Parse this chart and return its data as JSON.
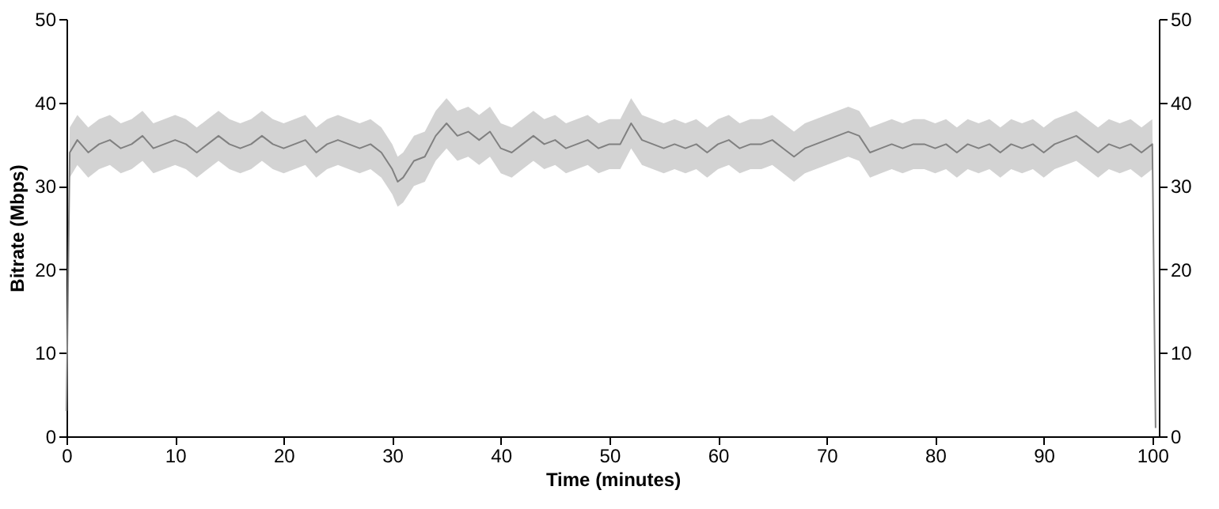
{
  "chart_data": {
    "type": "line",
    "xlabel": "Time (minutes)",
    "ylabel": "Bitrate (Mbps)",
    "xlim": [
      0,
      100.6
    ],
    "xticks": [
      0,
      10,
      20,
      30,
      40,
      50,
      60,
      70,
      80,
      90,
      100
    ],
    "ylim": [
      0,
      50
    ],
    "yticks": [
      0,
      10,
      20,
      30,
      40,
      50
    ],
    "y2lim": [
      0,
      50
    ],
    "y2ticks": [
      0,
      10,
      20,
      30,
      40,
      50
    ],
    "grid": false,
    "marker": "none",
    "line_style": "solid",
    "x": [
      0,
      0.3,
      1,
      2,
      3,
      4,
      5,
      6,
      7,
      8,
      9,
      10,
      11,
      12,
      13,
      14,
      15,
      16,
      17,
      18,
      19,
      20,
      21,
      22,
      23,
      24,
      25,
      26,
      27,
      28,
      29,
      30,
      30.5,
      31,
      32,
      33,
      34,
      35,
      36,
      37,
      38,
      39,
      40,
      41,
      42,
      43,
      44,
      45,
      46,
      47,
      48,
      49,
      50,
      51,
      52,
      53,
      54,
      55,
      56,
      57,
      58,
      59,
      60,
      61,
      62,
      63,
      64,
      65,
      66,
      67,
      68,
      69,
      70,
      71,
      72,
      73,
      74,
      75,
      76,
      77,
      78,
      79,
      80,
      81,
      82,
      83,
      84,
      85,
      86,
      87,
      88,
      89,
      90,
      91,
      92,
      93,
      94,
      95,
      96,
      97,
      98,
      99,
      100,
      100.3
    ],
    "series": [
      {
        "color": "#808080",
        "values": [
          3,
          34,
          35.5,
          34,
          35,
          35.5,
          34.5,
          35,
          36,
          34.5,
          35,
          35.5,
          35,
          34,
          35,
          36,
          35,
          34.5,
          35,
          36,
          35,
          34.5,
          35,
          35.5,
          34,
          35,
          35.5,
          35,
          34.5,
          35,
          34,
          32,
          30.5,
          31,
          33,
          33.5,
          36,
          37.5,
          36,
          36.5,
          35.5,
          36.5,
          34.5,
          34,
          35,
          36,
          35,
          35.5,
          34.5,
          35,
          35.5,
          34.5,
          35,
          35,
          37.5,
          35.5,
          35,
          34.5,
          35,
          34.5,
          35,
          34,
          35,
          35.5,
          34.5,
          35,
          35,
          35.5,
          34.5,
          33.5,
          34.5,
          35,
          35.5,
          36,
          36.5,
          36,
          34,
          34.5,
          35,
          34.5,
          35,
          35,
          34.5,
          35,
          34,
          35,
          34.5,
          35,
          34,
          35,
          34.5,
          35,
          34,
          35,
          35.5,
          36,
          35,
          34,
          35,
          34.5,
          35,
          34,
          35,
          1
        ],
        "upper": [
          6,
          37,
          38.5,
          37,
          38,
          38.5,
          37.5,
          38,
          39,
          37.5,
          38,
          38.5,
          38,
          37,
          38,
          39,
          38,
          37.5,
          38,
          39,
          38,
          37.5,
          38,
          38.5,
          37,
          38,
          38.5,
          38,
          37.5,
          38,
          37,
          35,
          33.5,
          34,
          36,
          36.5,
          39,
          40.5,
          39,
          39.5,
          38.5,
          39.5,
          37.5,
          37,
          38,
          39,
          38,
          38.5,
          37.5,
          38,
          38.5,
          37.5,
          38,
          38,
          40.5,
          38.5,
          38,
          37.5,
          38,
          37.5,
          38,
          37,
          38,
          38.5,
          37.5,
          38,
          38,
          38.5,
          37.5,
          36.5,
          37.5,
          38,
          38.5,
          39,
          39.5,
          39,
          37,
          37.5,
          38,
          37.5,
          38,
          38,
          37.5,
          38,
          37,
          38,
          37.5,
          38,
          37,
          38,
          37.5,
          38,
          37,
          38,
          38.5,
          39,
          38,
          37,
          38,
          37.5,
          38,
          37,
          38,
          4
        ],
        "lower": [
          0,
          31,
          32.5,
          31,
          32,
          32.5,
          31.5,
          32,
          33,
          31.5,
          32,
          32.5,
          32,
          31,
          32,
          33,
          32,
          31.5,
          32,
          33,
          32,
          31.5,
          32,
          32.5,
          31,
          32,
          32.5,
          32,
          31.5,
          32,
          31,
          29,
          27.5,
          28,
          30,
          30.5,
          33,
          34.5,
          33,
          33.5,
          32.5,
          33.5,
          31.5,
          31,
          32,
          33,
          32,
          32.5,
          31.5,
          32,
          32.5,
          31.5,
          32,
          32,
          34.5,
          32.5,
          32,
          31.5,
          32,
          31.5,
          32,
          31,
          32,
          32.5,
          31.5,
          32,
          32,
          32.5,
          31.5,
          30.5,
          31.5,
          32,
          32.5,
          33,
          33.5,
          33,
          31,
          31.5,
          32,
          31.5,
          32,
          32,
          31.5,
          32,
          31,
          32,
          31.5,
          32,
          31,
          32,
          31.5,
          32,
          31,
          32,
          32.5,
          33,
          32,
          31,
          32,
          31.5,
          32,
          31,
          32,
          0
        ]
      }
    ]
  }
}
